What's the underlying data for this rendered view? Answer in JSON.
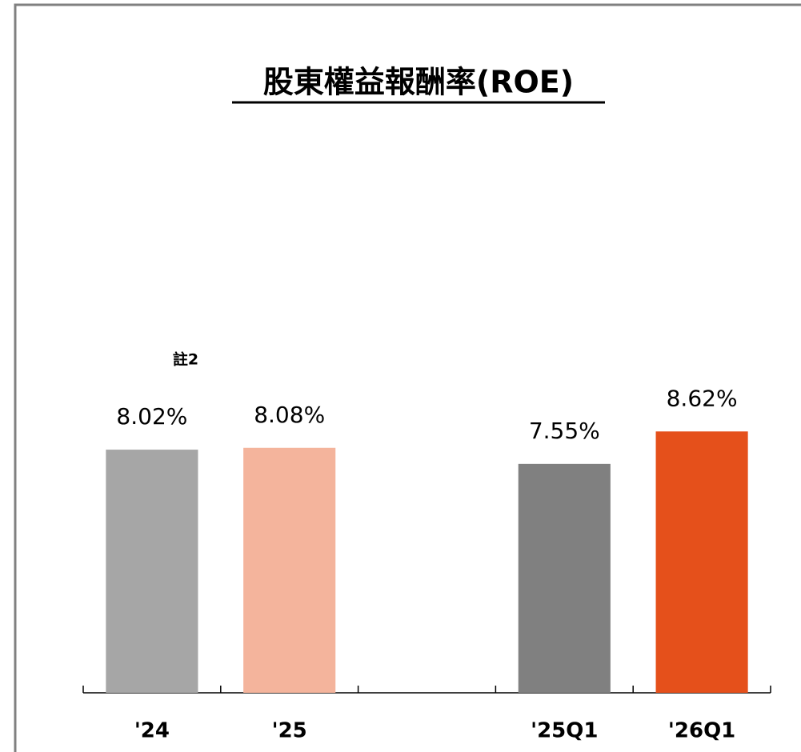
{
  "chart_data": {
    "type": "bar",
    "title": "股東權益報酬率(ROE)",
    "categories": [
      "'24",
      "'25",
      null,
      "'25Q1",
      "'26Q1"
    ],
    "values": [
      8.02,
      8.08,
      null,
      7.55,
      8.62
    ],
    "value_labels": [
      "8.02%",
      "8.08%",
      null,
      "7.55%",
      "8.62%"
    ],
    "colors": [
      "#a6a6a6",
      "#f4b49c",
      null,
      "#808080",
      "#e5501b"
    ],
    "annotation": "註2",
    "ylim": [
      0,
      20
    ]
  }
}
